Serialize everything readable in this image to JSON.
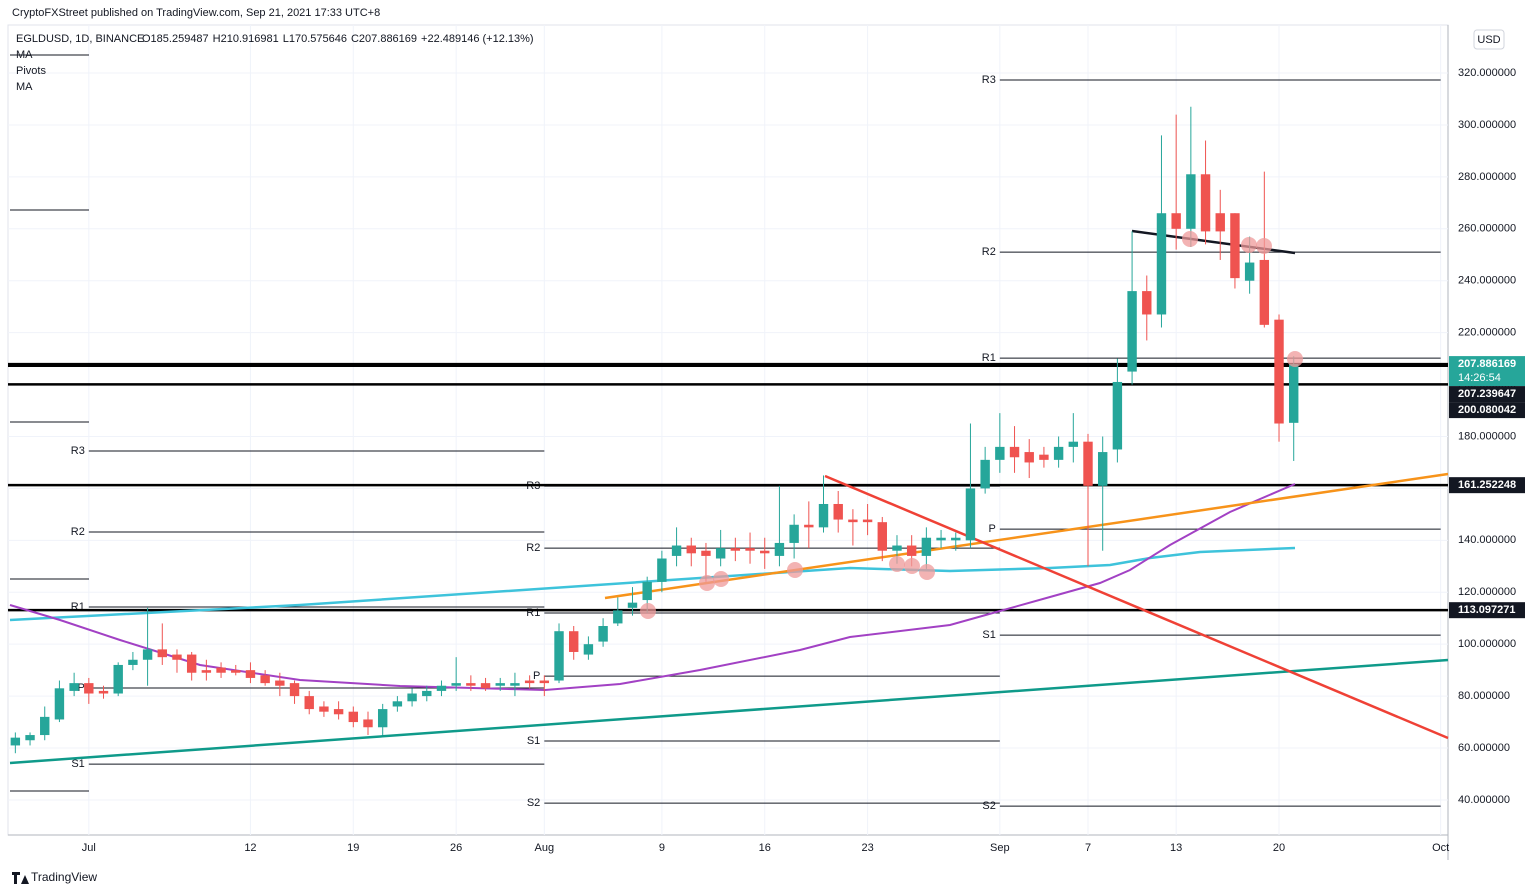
{
  "chart_data": {
    "type": "candlestick",
    "header": "CryptoFXStreet published on TradingView.com, Sep 21, 2021 17:33 UTC+8",
    "symbol": "EGLDUSD, 1D, BINANCE",
    "ohlc": [
      "O185.259487",
      "H210.916981",
      "L170.575646",
      "C207.886169",
      "+22.489146 (+12.13%)"
    ],
    "indicators": [
      "MA",
      "Pivots",
      "MA"
    ],
    "currency": "USD",
    "countdown": "14:26:54",
    "brand": "TradingView",
    "up_color": "#26a69a",
    "down_color": "#ef5350",
    "categories": [
      null,
      null,
      null,
      null,
      null,
      "Jul",
      null,
      null,
      null,
      null,
      null,
      null,
      null,
      null,
      null,
      null,
      "12",
      null,
      null,
      null,
      null,
      null,
      null,
      "19",
      null,
      null,
      null,
      null,
      null,
      null,
      "26",
      null,
      null,
      null,
      null,
      null,
      "Aug",
      null,
      null,
      null,
      null,
      null,
      null,
      null,
      "9",
      null,
      null,
      null,
      null,
      null,
      null,
      "16",
      null,
      null,
      null,
      null,
      null,
      null,
      "23",
      null,
      null,
      null,
      null,
      null,
      null,
      null,
      null,
      "Sep",
      null,
      null,
      null,
      null,
      null,
      "7",
      null,
      null,
      null,
      null,
      null,
      "13",
      null,
      null,
      null,
      null,
      null,
      null,
      "20",
      null,
      null,
      null,
      null,
      null,
      null,
      null,
      null,
      null,
      null,
      "Oct"
    ],
    "open": [
      61,
      63,
      65,
      71,
      82,
      85,
      82,
      81,
      92,
      94,
      98,
      96,
      96,
      90,
      91,
      90,
      90,
      88,
      86,
      85,
      80,
      76,
      75,
      74,
      71,
      68,
      76,
      78,
      80,
      82,
      84,
      85,
      85,
      84,
      84,
      86,
      86,
      86,
      105,
      96,
      101,
      108,
      114,
      117,
      124,
      134,
      138,
      136,
      133,
      137,
      137,
      136,
      134,
      139,
      146,
      145,
      154,
      148,
      148,
      147,
      136,
      138,
      134,
      140,
      140,
      140,
      160,
      171,
      176,
      174,
      173,
      171,
      176,
      178,
      161,
      175,
      205,
      236,
      227,
      266,
      260,
      281,
      266,
      266,
      240,
      248,
      225,
      185.259487,
      null,
      null,
      null,
      null,
      null,
      null,
      null,
      null,
      null,
      null
    ],
    "high": [
      66,
      66,
      76,
      86,
      89,
      87,
      84,
      93,
      97,
      114,
      108,
      98,
      97,
      94,
      93,
      92,
      93,
      90,
      89,
      86,
      82,
      78,
      78,
      76,
      74,
      77,
      80,
      83,
      84,
      86,
      95,
      88,
      87,
      87,
      89,
      88,
      88,
      108,
      107,
      103,
      110,
      118,
      122,
      126,
      136,
      145,
      141,
      139,
      144,
      141,
      143,
      141,
      161,
      150,
      155,
      165,
      159,
      152,
      154,
      149,
      142,
      142,
      145,
      144,
      143,
      185,
      176,
      189,
      184,
      179,
      176,
      180,
      189,
      181,
      180,
      210,
      259,
      242,
      296,
      304,
      307,
      294,
      275,
      266,
      257,
      282,
      227,
      210.916981,
      null,
      null,
      null,
      null,
      null,
      null,
      null,
      null,
      null,
      null
    ],
    "low": [
      58,
      61,
      63,
      70,
      80,
      77,
      79,
      80,
      90,
      84,
      92,
      89,
      86,
      86,
      87,
      88,
      85,
      84,
      80,
      77,
      73,
      72,
      71,
      68,
      65,
      65,
      74,
      76,
      78,
      80,
      82,
      82,
      82,
      82,
      80,
      83,
      80,
      85,
      94,
      94,
      99,
      107,
      111,
      112,
      120,
      130,
      130,
      124,
      130,
      132,
      131,
      129,
      130,
      133,
      137,
      143,
      143,
      138,
      142,
      132,
      131,
      130,
      129,
      137,
      136,
      137,
      158,
      166,
      166,
      164,
      168,
      168,
      170,
      130,
      136,
      170,
      200,
      217,
      222,
      252,
      253,
      254,
      248,
      237,
      235,
      222,
      178,
      170.575646,
      null,
      null,
      null,
      null,
      null,
      null,
      null,
      null,
      null,
      null
    ],
    "close": [
      64,
      65,
      72,
      83,
      85,
      81,
      81,
      92,
      94,
      98,
      95,
      94,
      89,
      89,
      89,
      89,
      87,
      85,
      84,
      80,
      75,
      74,
      73,
      70,
      68,
      75,
      78,
      81,
      82,
      84,
      85,
      84,
      83,
      85,
      85,
      85,
      85,
      105,
      97,
      100,
      107,
      113,
      116,
      124,
      133,
      138,
      135,
      134,
      137,
      136,
      136,
      135,
      139,
      146,
      145,
      154,
      148,
      147,
      147,
      136,
      138,
      134,
      141,
      141,
      141,
      160,
      171,
      176,
      172,
      170,
      171,
      176,
      178,
      161,
      174,
      201,
      236,
      227,
      266,
      260,
      281,
      259,
      259,
      241,
      247,
      223,
      185,
      207.886169,
      null,
      null,
      null,
      null,
      null,
      null,
      null,
      null,
      null,
      null
    ],
    "ylim": [
      26.5,
      338.5
    ],
    "yticks": [
      {
        "value": 40,
        "label": "40.000000"
      },
      {
        "value": 60,
        "label": "60.000000"
      },
      {
        "value": 80,
        "label": "80.000000"
      },
      {
        "value": 100,
        "label": "100.000000"
      },
      {
        "value": 120,
        "label": "120.000000"
      },
      {
        "value": 140,
        "label": "140.000000"
      },
      {
        "value": 160,
        "label": "160.000000"
      },
      {
        "value": 180,
        "label": "180.000000"
      },
      {
        "value": 200,
        "label": "200.000000"
      },
      {
        "value": 220,
        "label": "220.000000"
      },
      {
        "value": 240,
        "label": "240.000000"
      },
      {
        "value": 260,
        "label": "260.000000"
      },
      {
        "value": 280,
        "label": "280.000000"
      },
      {
        "value": 300,
        "label": "300.000000"
      },
      {
        "value": 320,
        "label": "320.000000"
      }
    ],
    "levels": [
      207.239647,
      200.080042,
      161.252248,
      113.097271
    ],
    "pivots": [
      [
        {
          "label": "R3",
          "value": 174.4
        },
        {
          "label": "R2",
          "value": 143.2
        },
        {
          "label": "R1",
          "value": 114.3
        },
        {
          "label": "P",
          "value": 83.1
        },
        {
          "label": "S1",
          "value": 53.8
        }
      ],
      [
        {
          "label": "R3",
          "value": 160.9
        },
        {
          "label": "R2",
          "value": 137
        },
        {
          "label": "R1",
          "value": 112
        },
        {
          "label": "P",
          "value": 87.7
        },
        {
          "label": "S1",
          "value": 62.7
        },
        {
          "label": "S2",
          "value": 38.8
        }
      ],
      [
        {
          "label": "R3",
          "value": 317.3
        },
        {
          "label": "R2",
          "value": 251
        },
        {
          "label": "R1",
          "value": 210.2
        },
        {
          "label": "P",
          "value": 144.3
        },
        {
          "label": "S1",
          "value": 103.5
        },
        {
          "label": "S2",
          "value": 37.6
        }
      ]
    ]
  }
}
